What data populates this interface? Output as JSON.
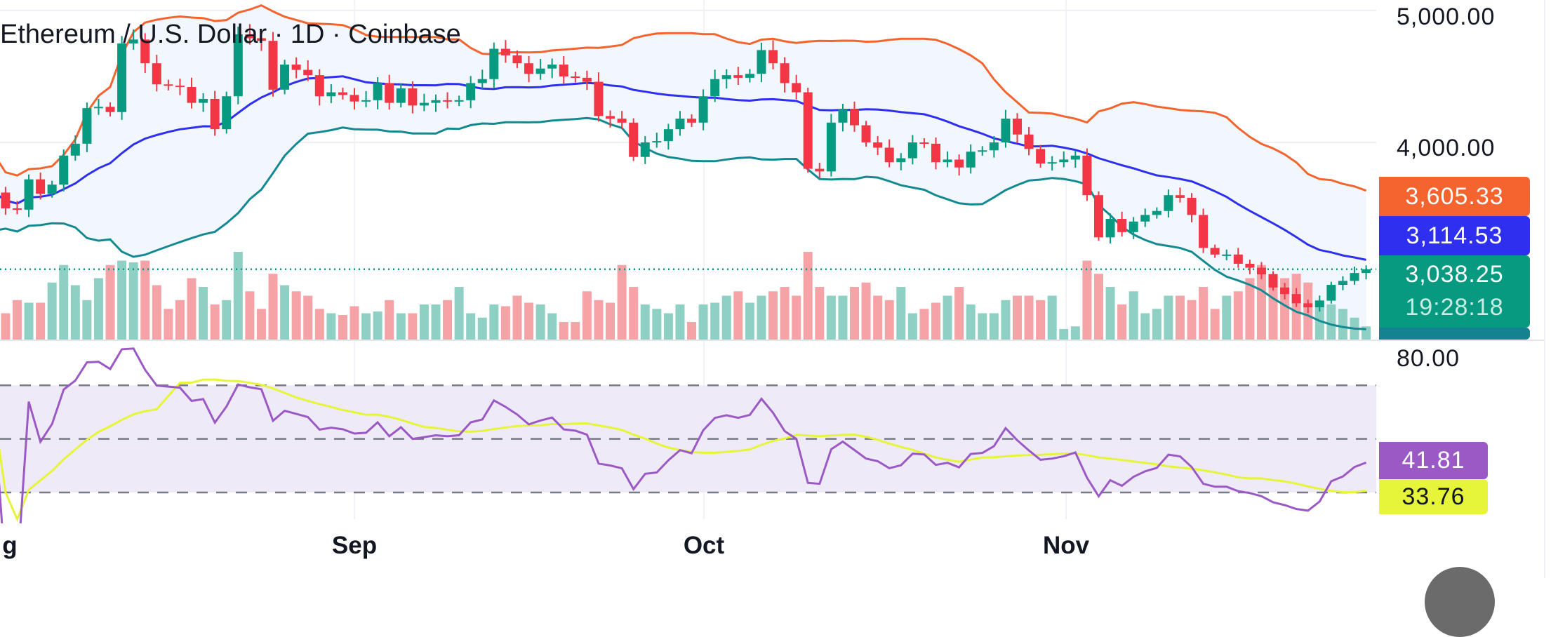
{
  "header": {
    "title": "Ethereum / U.S. Dollar · 1D · Coinbase"
  },
  "price_axis": {
    "labels": [
      "5,000.00",
      "4,000.00"
    ]
  },
  "rsi_axis": {
    "labels": [
      "80.00"
    ]
  },
  "tags": {
    "bb_upper": "3,605.33",
    "bb_basis": "3,114.53",
    "last_price": "3,038.25",
    "countdown": "19:28:18",
    "rsi": "41.81",
    "rsi_ma": "33.76"
  },
  "dates": [
    "g",
    "Sep",
    "Oct",
    "Nov"
  ],
  "colors": {
    "up": "#089981",
    "down": "#f23645",
    "bb_upper": "#f4642e",
    "bb_basis": "#2f2ff0",
    "bb_lower": "#138a92",
    "rsi": "#9b59c6",
    "rsi_ma": "#e6f53a",
    "vol_up": "#8fd0c4",
    "vol_down": "#f5a3a6",
    "rsi_band": "#efeaf8",
    "bb_fill": "#f1f7fd"
  },
  "chart_data": {
    "type": "candlestick",
    "symbol": "ETH/USD",
    "interval": "1D",
    "x_start": "Aug 1",
    "x_end": "Nov 27",
    "ylim": [
      2560,
      5050
    ],
    "yticks": [
      4000,
      5000
    ],
    "closes": [
      3620,
      3500,
      3490,
      3720,
      3610,
      3680,
      3900,
      3990,
      4260,
      4270,
      4230,
      4750,
      4780,
      4600,
      4440,
      4430,
      4420,
      4300,
      4330,
      4100,
      4350,
      4820,
      4790,
      4770,
      4400,
      4590,
      4550,
      4510,
      4350,
      4380,
      4360,
      4310,
      4320,
      4450,
      4300,
      4410,
      4280,
      4300,
      4320,
      4310,
      4320,
      4450,
      4480,
      4710,
      4660,
      4600,
      4520,
      4560,
      4590,
      4500,
      4490,
      4460,
      4200,
      4180,
      4150,
      3890,
      4000,
      4010,
      4100,
      4180,
      4150,
      4350,
      4480,
      4510,
      4490,
      4520,
      4700,
      4600,
      4450,
      4380,
      3800,
      3780,
      4150,
      4250,
      4130,
      4000,
      3960,
      3850,
      3880,
      4000,
      3990,
      3850,
      3870,
      3810,
      3930,
      3940,
      4000,
      4180,
      4060,
      3950,
      3840,
      3850,
      3870,
      3900,
      3600,
      3280,
      3420,
      3320,
      3400,
      3450,
      3480,
      3600,
      3580,
      3450,
      3200,
      3150,
      3150,
      3080,
      3050,
      3000,
      2900,
      2850,
      2780,
      2750,
      2800,
      2920,
      2950,
      3010,
      3038.25
    ],
    "volumes": [
      0.45,
      0.3,
      0.45,
      0.42,
      0.42,
      0.65,
      0.85,
      0.62,
      0.45,
      0.7,
      0.85,
      0.9,
      0.88,
      0.9,
      0.62,
      0.35,
      0.45,
      0.7,
      0.6,
      0.4,
      0.45,
      1.0,
      0.55,
      0.35,
      0.75,
      0.62,
      0.55,
      0.5,
      0.35,
      0.3,
      0.28,
      0.38,
      0.3,
      0.32,
      0.45,
      0.3,
      0.3,
      0.4,
      0.4,
      0.45,
      0.6,
      0.3,
      0.25,
      0.4,
      0.38,
      0.5,
      0.42,
      0.4,
      0.3,
      0.2,
      0.2,
      0.55,
      0.45,
      0.42,
      0.85,
      0.6,
      0.4,
      0.35,
      0.3,
      0.4,
      0.2,
      0.4,
      0.42,
      0.5,
      0.55,
      0.42,
      0.5,
      0.55,
      0.6,
      0.5,
      1.0,
      0.6,
      0.5,
      0.5,
      0.6,
      0.65,
      0.5,
      0.45,
      0.6,
      0.3,
      0.35,
      0.42,
      0.5,
      0.6,
      0.4,
      0.3,
      0.3,
      0.45,
      0.5,
      0.5,
      0.45,
      0.5,
      0.12,
      0.15,
      0.9,
      0.75,
      0.6,
      0.4,
      0.55,
      0.3,
      0.35,
      0.5,
      0.5,
      0.45,
      0.6,
      0.35,
      0.5,
      0.55,
      0.7,
      0.85,
      0.75,
      0.7,
      0.75,
      0.65,
      0.45,
      0.4,
      0.35,
      0.25,
      0.15
    ],
    "indicators": {
      "bollinger": {
        "upper_last": 3605.33,
        "basis_last": 3114.53
      },
      "rsi": {
        "last": 41.81,
        "ma_last": 33.76,
        "levels": [
          70,
          50,
          30
        ],
        "ylim": [
          22,
          86
        ]
      }
    },
    "last_price": 3038.25
  }
}
